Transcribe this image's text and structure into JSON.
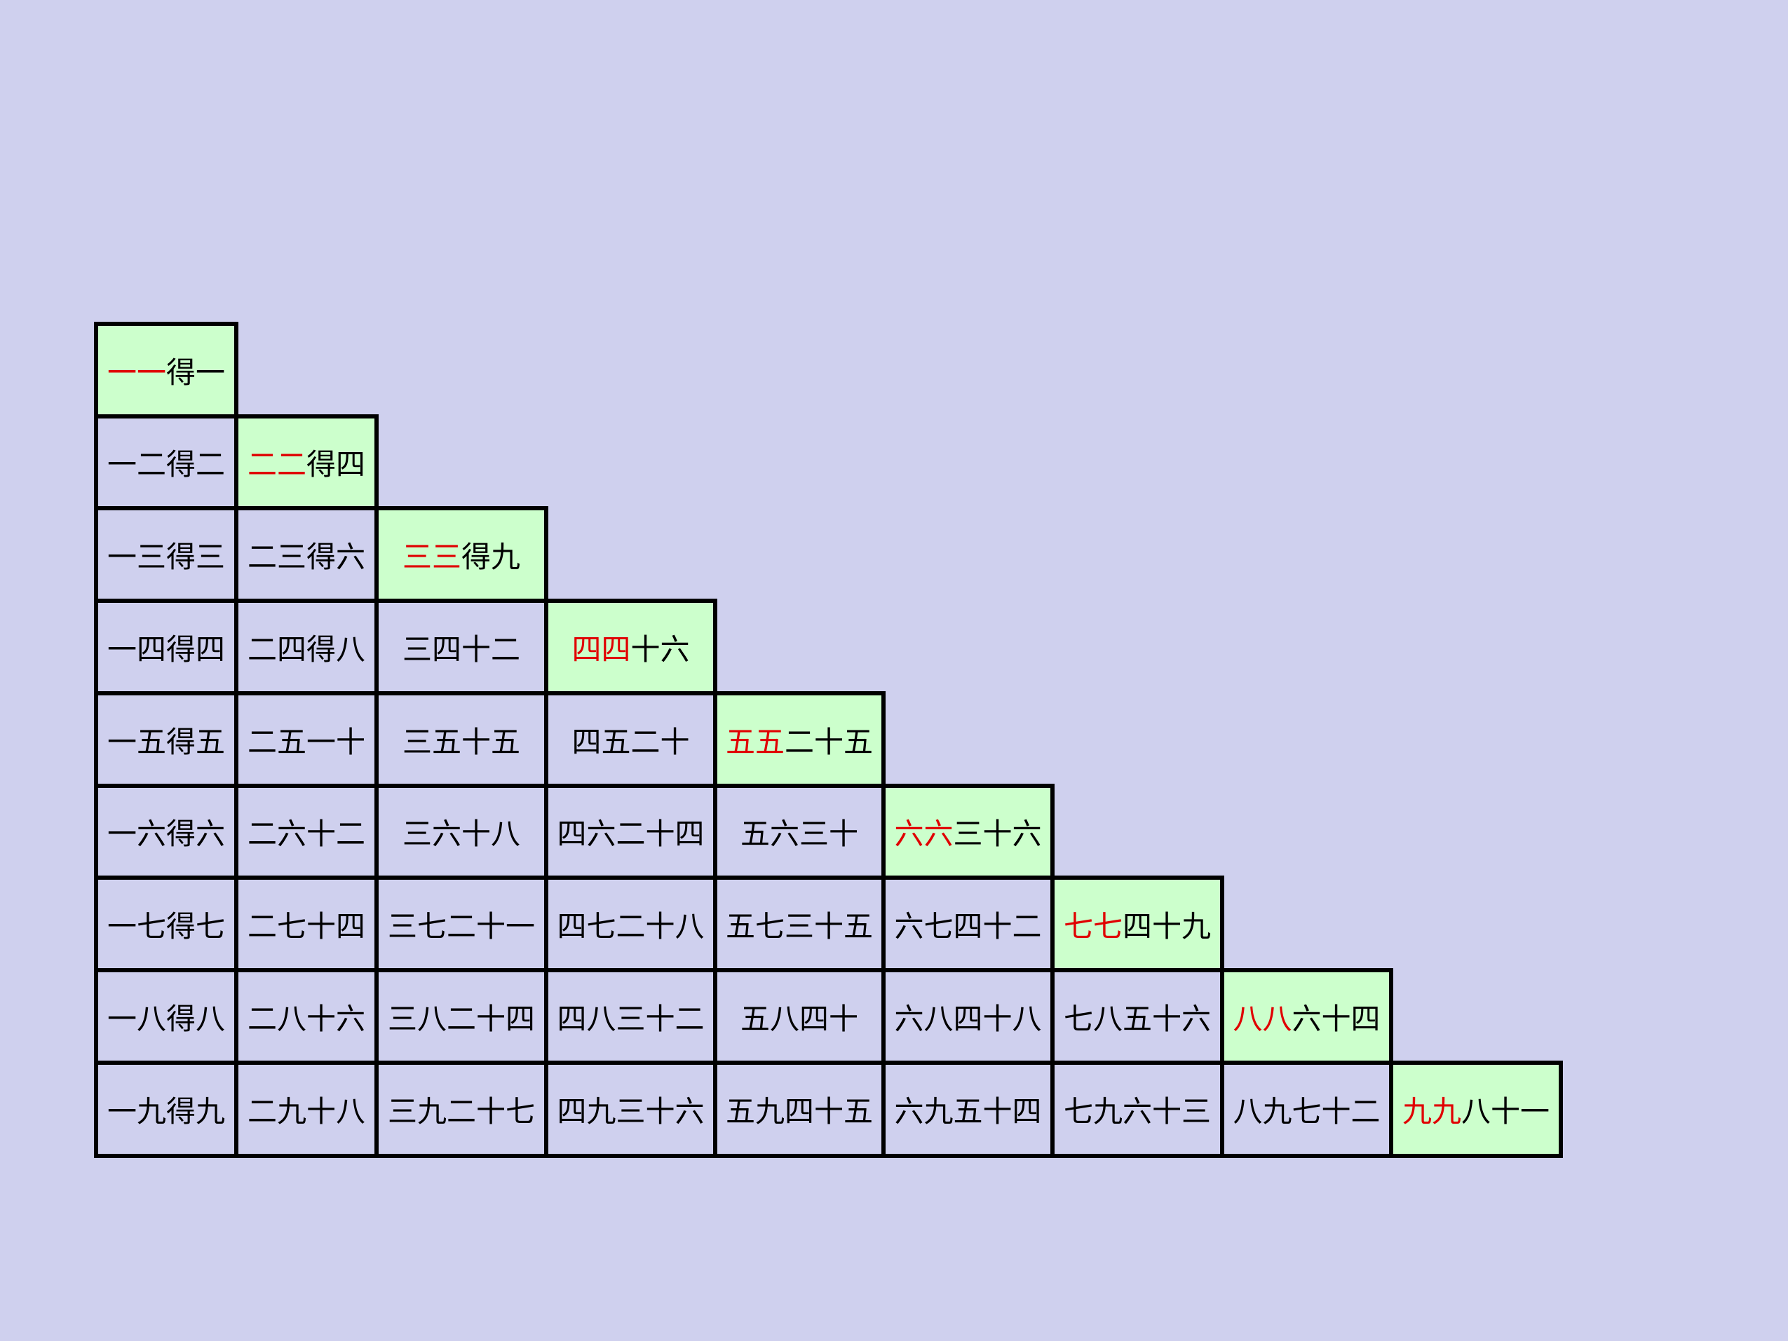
{
  "table": {
    "rows": [
      [
        {
          "highlight": "一一",
          "text": "得一"
        }
      ],
      [
        "一二得二",
        {
          "highlight": "二二",
          "text": "得四"
        }
      ],
      [
        "一三得三",
        "二三得六",
        {
          "highlight": "三三",
          "text": "得九"
        }
      ],
      [
        "一四得四",
        "二四得八",
        "三四十二",
        {
          "highlight": "四四",
          "text": "十六"
        }
      ],
      [
        "一五得五",
        "二五一十",
        "三五十五",
        "四五二十",
        {
          "highlight": "五五",
          "text": "二十五"
        }
      ],
      [
        "一六得六",
        "二六十二",
        "三六十八",
        "四六二十四",
        "五六三十",
        {
          "highlight": "六六",
          "text": "三十六"
        }
      ],
      [
        "一七得七",
        "二七十四",
        "三七二十一",
        "四七二十八",
        "五七三十五",
        "六七四十二",
        {
          "highlight": "七七",
          "text": "四十九"
        }
      ],
      [
        "一八得八",
        "二八十六",
        "三八二十四",
        "四八三十二",
        "五八四十",
        "六八四十八",
        "七八五十六",
        {
          "highlight": "八八",
          "text": "六十四"
        }
      ],
      [
        "一九得九",
        "二九十八",
        "三九二十七",
        "四九三十六",
        "五九四十五",
        "六九五十四",
        "七九六十三",
        "八九七十二",
        {
          "highlight": "九九",
          "text": "八十一"
        }
      ]
    ]
  }
}
